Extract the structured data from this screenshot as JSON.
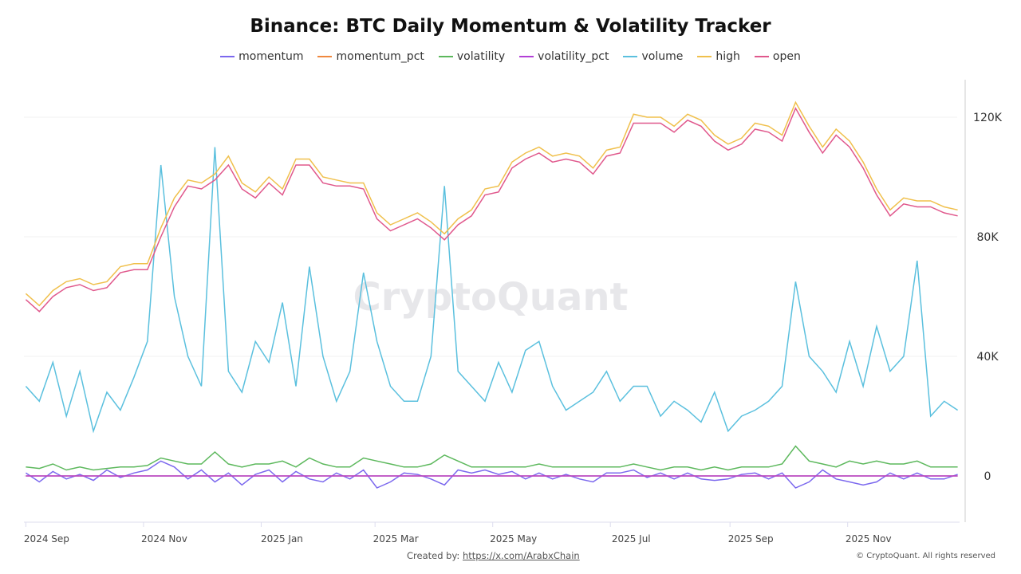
{
  "chart_data": {
    "type": "line",
    "title": "Binance: BTC Daily Momentum & Volatility Tracker",
    "xlabel": "",
    "ylabel": "",
    "ylim": [
      -15000,
      140000
    ],
    "y_ticks": [
      {
        "value": 0,
        "label": "0"
      },
      {
        "value": 40000,
        "label": "40K"
      },
      {
        "value": 80000,
        "label": "80K"
      },
      {
        "value": 120000,
        "label": "120K"
      }
    ],
    "x_ticks": [
      {
        "date": "2024-09-01",
        "label": "2024 Sep"
      },
      {
        "date": "2024-11-01",
        "label": "2024 Nov"
      },
      {
        "date": "2025-01-01",
        "label": "2025 Jan"
      },
      {
        "date": "2025-03-01",
        "label": "2025 Mar"
      },
      {
        "date": "2025-05-01",
        "label": "2025 May"
      },
      {
        "date": "2025-07-01",
        "label": "2025 Jul"
      },
      {
        "date": "2025-09-01",
        "label": "2025 Sep"
      },
      {
        "date": "2025-11-01",
        "label": "2025 Nov"
      }
    ],
    "x_range": [
      "2024-08-31",
      "2025-12-29"
    ],
    "grid": true,
    "legend_position": "top",
    "x": [
      "2024-09-01",
      "2024-09-08",
      "2024-09-15",
      "2024-09-22",
      "2024-09-29",
      "2024-10-06",
      "2024-10-13",
      "2024-10-20",
      "2024-10-27",
      "2024-11-03",
      "2024-11-10",
      "2024-11-17",
      "2024-11-24",
      "2024-12-01",
      "2024-12-08",
      "2024-12-15",
      "2024-12-22",
      "2024-12-29",
      "2025-01-05",
      "2025-01-12",
      "2025-01-19",
      "2025-01-26",
      "2025-02-02",
      "2025-02-09",
      "2025-02-16",
      "2025-02-23",
      "2025-03-02",
      "2025-03-09",
      "2025-03-16",
      "2025-03-23",
      "2025-03-30",
      "2025-04-06",
      "2025-04-13",
      "2025-04-20",
      "2025-04-27",
      "2025-05-04",
      "2025-05-11",
      "2025-05-18",
      "2025-05-25",
      "2025-06-01",
      "2025-06-08",
      "2025-06-15",
      "2025-06-22",
      "2025-06-29",
      "2025-07-06",
      "2025-07-13",
      "2025-07-20",
      "2025-07-27",
      "2025-08-03",
      "2025-08-10",
      "2025-08-17",
      "2025-08-24",
      "2025-08-31",
      "2025-09-07",
      "2025-09-14",
      "2025-09-21",
      "2025-09-28",
      "2025-10-05",
      "2025-10-12",
      "2025-10-19",
      "2025-10-26",
      "2025-11-02",
      "2025-11-09",
      "2025-11-16",
      "2025-11-23",
      "2025-11-30",
      "2025-12-07",
      "2025-12-14",
      "2025-12-21",
      "2025-12-28"
    ],
    "series": [
      {
        "name": "volume",
        "color": "#5bc0de",
        "values": [
          30000,
          25000,
          38000,
          20000,
          35000,
          15000,
          28000,
          22000,
          33000,
          45000,
          104000,
          60000,
          40000,
          30000,
          110000,
          35000,
          28000,
          45000,
          38000,
          58000,
          30000,
          70000,
          40000,
          25000,
          35000,
          68000,
          45000,
          30000,
          25000,
          25000,
          40000,
          97000,
          35000,
          30000,
          25000,
          38000,
          28000,
          42000,
          45000,
          30000,
          22000,
          25000,
          28000,
          35000,
          25000,
          30000,
          30000,
          20000,
          25000,
          22000,
          18000,
          28000,
          15000,
          20000,
          22000,
          25000,
          30000,
          65000,
          40000,
          35000,
          28000,
          45000,
          30000,
          50000,
          35000,
          40000,
          72000,
          20000,
          25000,
          22000
        ]
      },
      {
        "name": "volatility",
        "color": "#5cb85c",
        "values": [
          3000,
          2500,
          4000,
          2000,
          3000,
          2000,
          2500,
          3000,
          3000,
          3500,
          6000,
          5000,
          4000,
          4000,
          8000,
          4000,
          3000,
          4000,
          4000,
          5000,
          3000,
          6000,
          4000,
          3000,
          3000,
          6000,
          5000,
          4000,
          3000,
          3000,
          4000,
          7000,
          5000,
          3000,
          3000,
          3000,
          3000,
          3000,
          4000,
          3000,
          3000,
          3000,
          3000,
          3000,
          3000,
          4000,
          3000,
          2000,
          3000,
          3000,
          2000,
          3000,
          2000,
          3000,
          3000,
          3000,
          4000,
          10000,
          5000,
          4000,
          3000,
          5000,
          4000,
          5000,
          4000,
          4000,
          5000,
          3000,
          3000,
          3000
        ]
      },
      {
        "name": "momentum",
        "color": "#7b68ee",
        "values": [
          1000,
          -2000,
          1500,
          -1000,
          500,
          -1500,
          2000,
          -500,
          1000,
          2000,
          5000,
          3000,
          -1000,
          2000,
          -2000,
          1000,
          -3000,
          500,
          2000,
          -2000,
          1500,
          -1000,
          -2000,
          1000,
          -1000,
          2000,
          -4000,
          -2000,
          1000,
          500,
          -1000,
          -3000,
          2000,
          1000,
          2000,
          500,
          1500,
          -1000,
          1000,
          -1000,
          500,
          -1000,
          -2000,
          1000,
          1000,
          2000,
          -500,
          1000,
          -1000,
          1000,
          -1000,
          -1500,
          -1000,
          500,
          1000,
          -1000,
          1000,
          -4000,
          -2000,
          2000,
          -1000,
          -2000,
          -3000,
          -2000,
          1000,
          -1000,
          1000,
          -1000,
          -1000,
          500
        ]
      },
      {
        "name": "momentum_pct",
        "color": "#f0883e",
        "values": [
          0,
          0,
          0,
          0,
          0,
          0,
          0,
          0,
          0,
          0,
          0,
          0,
          0,
          0,
          0,
          0,
          0,
          0,
          0,
          0,
          0,
          0,
          0,
          0,
          0,
          0,
          0,
          0,
          0,
          0,
          0,
          0,
          0,
          0,
          0,
          0,
          0,
          0,
          0,
          0,
          0,
          0,
          0,
          0,
          0,
          0,
          0,
          0,
          0,
          0,
          0,
          0,
          0,
          0,
          0,
          0,
          0,
          0,
          0,
          0,
          0,
          0,
          0,
          0,
          0,
          0,
          0,
          0,
          0,
          0
        ]
      },
      {
        "name": "volatility_pct",
        "color": "#b23fd6",
        "values": [
          0,
          0,
          0,
          0,
          0,
          0,
          0,
          0,
          0,
          0,
          0,
          0,
          0,
          0,
          0,
          0,
          0,
          0,
          0,
          0,
          0,
          0,
          0,
          0,
          0,
          0,
          0,
          0,
          0,
          0,
          0,
          0,
          0,
          0,
          0,
          0,
          0,
          0,
          0,
          0,
          0,
          0,
          0,
          0,
          0,
          0,
          0,
          0,
          0,
          0,
          0,
          0,
          0,
          0,
          0,
          0,
          0,
          0,
          0,
          0,
          0,
          0,
          0,
          0,
          0,
          0,
          0,
          0,
          0,
          0
        ]
      },
      {
        "name": "high",
        "color": "#f0c04c",
        "values": [
          61000,
          57000,
          62000,
          65000,
          66000,
          64000,
          65000,
          70000,
          71000,
          71000,
          83000,
          93000,
          99000,
          98000,
          101000,
          107000,
          98000,
          95000,
          100000,
          96000,
          106000,
          106000,
          100000,
          99000,
          98000,
          98000,
          88000,
          84000,
          86000,
          88000,
          85000,
          81000,
          86000,
          89000,
          96000,
          97000,
          105000,
          108000,
          110000,
          107000,
          108000,
          107000,
          103000,
          109000,
          110000,
          121000,
          120000,
          120000,
          117000,
          121000,
          119000,
          114000,
          111000,
          113000,
          118000,
          117000,
          114000,
          125000,
          117000,
          110000,
          116000,
          112000,
          105000,
          96000,
          89000,
          93000,
          92000,
          92000,
          90000,
          89000
        ]
      },
      {
        "name": "open",
        "color": "#e0588c",
        "values": [
          59000,
          55000,
          60000,
          63000,
          64000,
          62000,
          63000,
          68000,
          69000,
          69000,
          80000,
          90000,
          97000,
          96000,
          99000,
          104000,
          96000,
          93000,
          98000,
          94000,
          104000,
          104000,
          98000,
          97000,
          97000,
          96000,
          86000,
          82000,
          84000,
          86000,
          83000,
          79000,
          84000,
          87000,
          94000,
          95000,
          103000,
          106000,
          108000,
          105000,
          106000,
          105000,
          101000,
          107000,
          108000,
          118000,
          118000,
          118000,
          115000,
          119000,
          117000,
          112000,
          109000,
          111000,
          116000,
          115000,
          112000,
          123000,
          115000,
          108000,
          114000,
          110000,
          103000,
          94000,
          87000,
          91000,
          90000,
          90000,
          88000,
          87000
        ]
      }
    ]
  },
  "legend": [
    {
      "label": "momentum",
      "color": "#7b68ee"
    },
    {
      "label": "momentum_pct",
      "color": "#f0883e"
    },
    {
      "label": "volatility",
      "color": "#5cb85c"
    },
    {
      "label": "volatility_pct",
      "color": "#b23fd6"
    },
    {
      "label": "volume",
      "color": "#5bc0de"
    },
    {
      "label": "high",
      "color": "#f0c04c"
    },
    {
      "label": "open",
      "color": "#e0588c"
    }
  ],
  "watermark": "CryptoQuant",
  "footer": {
    "created_by": "Created by:",
    "link": "https://x.com/ArabxChain",
    "copyright": "© CryptoQuant. All rights reserved"
  }
}
